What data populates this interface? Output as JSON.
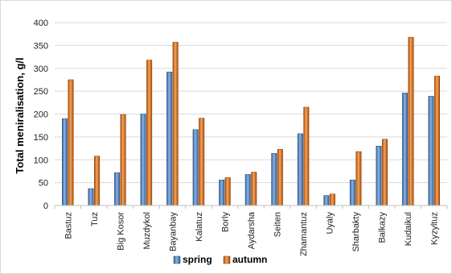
{
  "chart_data": {
    "type": "bar",
    "title": "",
    "xlabel": "",
    "ylabel": "Total meniralisation, g/l",
    "ylim": [
      0,
      400
    ],
    "yticks": [
      0,
      50,
      100,
      150,
      200,
      250,
      300,
      350,
      400
    ],
    "grid": true,
    "legend_position": "bottom",
    "categories": [
      "Bastuz",
      "Tuz",
      "Big Kosor",
      "Muzdykol",
      "Bayanbay",
      "Kalatuz",
      "Borly",
      "Aydarsha",
      "Seiten",
      "Zhamantuz",
      "Uyaly",
      "Sharbakty",
      "Balkazy",
      "Kudaikul",
      "Kyzyltuz"
    ],
    "series": [
      {
        "name": "spring",
        "color": "#4a7ebb",
        "values": [
          190,
          37,
          72,
          200,
          292,
          166,
          56,
          68,
          114,
          157,
          22,
          56,
          130,
          246,
          239
        ]
      },
      {
        "name": "autumn",
        "color": "#e36c0a",
        "values": [
          275,
          108,
          199,
          318,
          357,
          191,
          61,
          73,
          123,
          215,
          25,
          118,
          145,
          368,
          283
        ]
      }
    ]
  }
}
